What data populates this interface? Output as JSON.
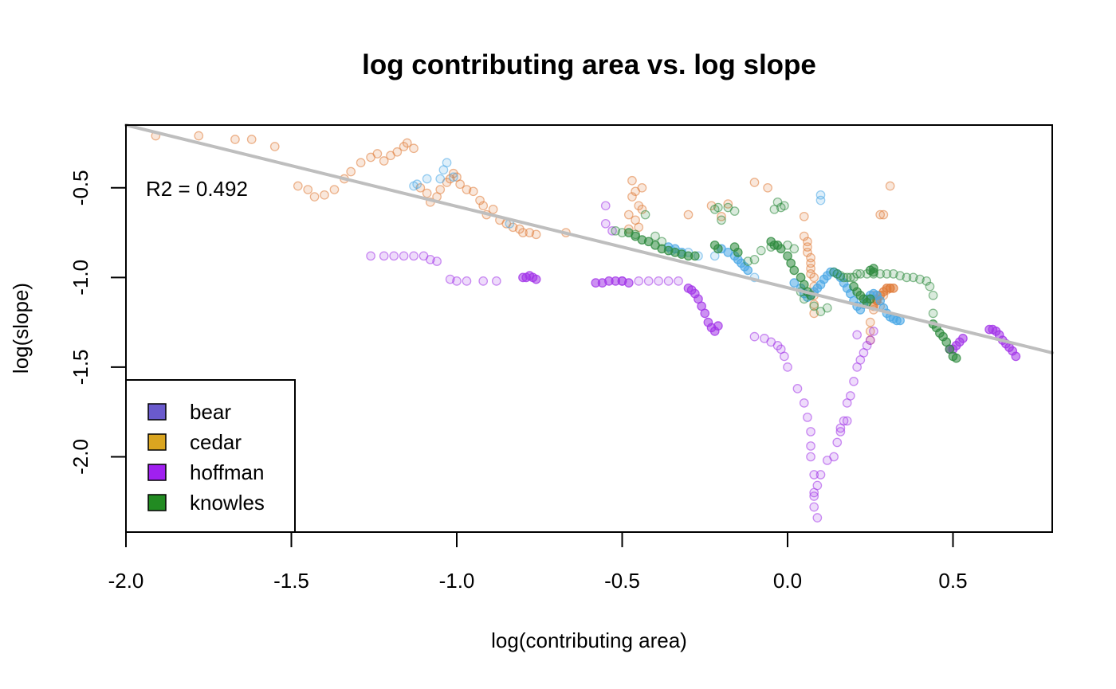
{
  "chart_data": {
    "type": "scatter",
    "title": "log contributing area vs. log slope",
    "xlabel": "log(contributing area)",
    "ylabel": "log(slope)",
    "xlim": [
      -2.0,
      0.8
    ],
    "ylim": [
      -2.42,
      -0.15
    ],
    "x_ticks": [
      "-2.0",
      "-1.5",
      "-1.0",
      "-0.5",
      "0.0",
      "0.5"
    ],
    "x_tick_values": [
      -2.0,
      -1.5,
      -1.0,
      -0.5,
      0.0,
      0.5
    ],
    "y_ticks": [
      "-0.5",
      "-1.0",
      "-1.5",
      "-2.0"
    ],
    "y_tick_values": [
      -0.5,
      -1.0,
      -1.5,
      -2.0
    ],
    "grid": false,
    "annotation": "R2 = 0.492",
    "regression_line": {
      "x": [
        -2.0,
        0.8
      ],
      "y": [
        -0.15,
        -1.42
      ],
      "color": "#bebebe"
    },
    "legend": {
      "placement": "bottom-left",
      "entries": [
        {
          "label": "bear",
          "color": "#6a5acd"
        },
        {
          "label": "cedar",
          "color": "#daa520"
        },
        {
          "label": "hoffman",
          "color": "#a020f0"
        },
        {
          "label": "knowles",
          "color": "#228b22"
        }
      ]
    },
    "series": [
      {
        "color": "#e07b39",
        "x": [
          -1.91,
          -1.78,
          -1.67,
          -1.62,
          -1.55,
          -1.48,
          -1.45,
          -1.43,
          -1.4,
          -1.37,
          -1.34,
          -1.32,
          -1.29,
          -1.26,
          -1.24,
          -1.22,
          -1.2,
          -1.18,
          -1.16,
          -1.15,
          -1.13,
          -1.11,
          -1.09,
          -1.08,
          -1.06,
          -1.05,
          -1.03,
          -1.02,
          -1.01,
          -1.0,
          -0.99,
          -0.97,
          -0.95,
          -0.93,
          -0.92,
          -0.91,
          -0.89,
          -0.87,
          -0.85,
          -0.83,
          -0.81,
          -0.8,
          -0.78,
          -0.76,
          -0.67,
          -0.48,
          -0.47,
          -0.46,
          -0.45,
          -0.44,
          -0.47,
          -0.48,
          -0.46,
          -0.45,
          -0.44,
          -0.3,
          -0.23,
          -0.2,
          -0.18,
          -0.1,
          -0.06,
          0.05,
          0.05,
          0.06,
          0.06,
          0.06,
          0.07,
          0.07,
          0.07,
          0.07,
          0.08,
          0.08,
          0.08,
          0.08,
          0.08,
          0.28,
          0.29,
          0.31,
          0.31,
          0.26,
          0.27,
          0.28,
          0.29,
          0.3,
          0.26,
          0.25,
          0.25,
          0.25
        ],
        "y": [
          -0.21,
          -0.21,
          -0.23,
          -0.23,
          -0.27,
          -0.49,
          -0.51,
          -0.55,
          -0.54,
          -0.51,
          -0.45,
          -0.41,
          -0.36,
          -0.33,
          -0.31,
          -0.35,
          -0.32,
          -0.3,
          -0.27,
          -0.25,
          -0.28,
          -0.5,
          -0.53,
          -0.58,
          -0.55,
          -0.51,
          -0.47,
          -0.45,
          -0.42,
          -0.44,
          -0.48,
          -0.51,
          -0.52,
          -0.57,
          -0.6,
          -0.65,
          -0.62,
          -0.68,
          -0.7,
          -0.72,
          -0.73,
          -0.75,
          -0.75,
          -0.76,
          -0.75,
          -0.73,
          -0.55,
          -0.52,
          -0.6,
          -0.62,
          -0.46,
          -0.65,
          -0.68,
          -0.72,
          -0.5,
          -0.65,
          -0.6,
          -0.66,
          -0.59,
          -0.47,
          -0.5,
          -0.66,
          -0.77,
          -0.8,
          -0.83,
          -0.86,
          -0.89,
          -0.92,
          -0.95,
          -0.98,
          -1.0,
          -1.05,
          -1.1,
          -1.15,
          -1.2,
          -0.65,
          -0.65,
          -0.49,
          -1.06,
          -1.1,
          -1.13,
          -1.16,
          -1.1,
          -1.07,
          -1.18,
          -1.25,
          -1.3,
          -1.35
        ],
        "dense_x": [
          0.27,
          0.28,
          0.29,
          0.3,
          0.31,
          0.32,
          0.26,
          0.27
        ],
        "dense_y": [
          -1.13,
          -1.1,
          -1.08,
          -1.06,
          -1.06,
          -1.06,
          -1.16,
          -1.12
        ]
      },
      {
        "color": "#4aa8e6",
        "x": [
          -1.13,
          -1.12,
          -1.09,
          -1.05,
          -1.04,
          -1.03,
          -1.01,
          -0.84,
          -0.35,
          -0.3,
          -0.27,
          -0.22,
          -0.1,
          0.1,
          0.1
        ],
        "y": [
          -0.49,
          -0.48,
          -0.45,
          -0.45,
          -0.4,
          -0.36,
          -0.44,
          -0.7,
          -0.85,
          -0.86,
          -0.88,
          -0.88,
          -1.0,
          -0.57,
          -0.54
        ],
        "dense_x": [
          -0.36,
          -0.34,
          -0.32,
          -0.2,
          -0.18,
          -0.16,
          -0.15,
          -0.14,
          -0.13,
          -0.12,
          0.02,
          0.04,
          0.05,
          0.06,
          0.07,
          0.08,
          0.09,
          0.1,
          0.11,
          0.12,
          0.13,
          0.14,
          0.15,
          0.16,
          0.17,
          0.18,
          0.19,
          0.2,
          0.21,
          0.22,
          0.23,
          0.24,
          0.25,
          0.26,
          0.27,
          0.28,
          0.29,
          0.3,
          0.31,
          0.32,
          0.33,
          0.34
        ],
        "dense_y": [
          -0.83,
          -0.84,
          -0.86,
          -0.84,
          -0.86,
          -0.88,
          -0.9,
          -0.92,
          -0.94,
          -0.96,
          -1.03,
          -1.06,
          -1.09,
          -1.11,
          -1.1,
          -1.08,
          -1.06,
          -1.04,
          -1.01,
          -0.99,
          -0.97,
          -0.97,
          -0.98,
          -1.0,
          -1.03,
          -1.06,
          -1.09,
          -1.13,
          -1.16,
          -1.18,
          -1.15,
          -1.12,
          -1.1,
          -1.09,
          -1.1,
          -1.13,
          -1.17,
          -1.2,
          -1.22,
          -1.23,
          -1.24,
          -1.24
        ]
      },
      {
        "color": "#a335e8",
        "x": [
          -1.26,
          -1.22,
          -1.19,
          -1.16,
          -1.13,
          -1.1,
          -1.08,
          -1.06,
          -1.02,
          -1.0,
          -0.97,
          -0.92,
          -0.88,
          -0.55,
          -0.55,
          -0.53,
          -0.5,
          -0.45,
          -0.42,
          -0.39,
          -0.36,
          -0.33,
          -0.1,
          -0.07,
          -0.05,
          -0.03,
          -0.02,
          -0.01,
          0.0,
          0.03,
          0.05,
          0.06,
          0.07,
          0.07,
          0.07,
          0.08,
          0.08,
          0.08,
          0.08,
          0.09,
          0.09,
          0.1,
          0.12,
          0.14,
          0.15,
          0.16,
          0.16,
          0.17,
          0.18,
          0.19,
          0.2,
          0.21,
          0.22,
          0.23,
          0.24,
          0.25,
          0.26,
          0.21,
          0.18
        ],
        "y": [
          -0.88,
          -0.88,
          -0.88,
          -0.88,
          -0.88,
          -0.88,
          -0.9,
          -0.91,
          -1.01,
          -1.02,
          -1.02,
          -1.02,
          -1.02,
          -0.6,
          -0.7,
          -0.74,
          -1.02,
          -1.02,
          -1.02,
          -1.02,
          -1.02,
          -1.02,
          -1.33,
          -1.34,
          -1.36,
          -1.38,
          -1.4,
          -1.44,
          -1.5,
          -1.62,
          -1.7,
          -1.78,
          -1.86,
          -1.94,
          -2.0,
          -2.1,
          -2.2,
          -2.28,
          -2.22,
          -2.34,
          -2.16,
          -2.1,
          -2.02,
          -2.0,
          -1.92,
          -1.86,
          -1.84,
          -1.8,
          -1.7,
          -1.66,
          -1.58,
          -1.5,
          -1.46,
          -1.42,
          -1.38,
          -1.35,
          -1.3,
          -1.32,
          -1.8
        ],
        "dense_x": [
          -0.8,
          -0.79,
          -0.78,
          -0.77,
          -0.76,
          -0.58,
          -0.56,
          -0.54,
          -0.52,
          -0.5,
          -0.48,
          -0.3,
          -0.29,
          -0.28,
          -0.27,
          -0.26,
          -0.25,
          -0.24,
          -0.23,
          -0.22,
          -0.21,
          0.49,
          0.5,
          0.51,
          0.52,
          0.53,
          0.61,
          0.62,
          0.63,
          0.64,
          0.65,
          0.66,
          0.67,
          0.68,
          0.69
        ],
        "dense_y": [
          -1.0,
          -1.0,
          -0.99,
          -1.0,
          -1.01,
          -1.03,
          -1.03,
          -1.02,
          -1.02,
          -1.02,
          -1.03,
          -1.06,
          -1.07,
          -1.09,
          -1.12,
          -1.16,
          -1.2,
          -1.25,
          -1.28,
          -1.3,
          -1.27,
          -1.4,
          -1.4,
          -1.38,
          -1.36,
          -1.34,
          -1.29,
          -1.29,
          -1.3,
          -1.32,
          -1.35,
          -1.37,
          -1.39,
          -1.41,
          -1.44
        ]
      },
      {
        "color": "#2e8b3e",
        "x": [
          -0.52,
          -0.5,
          -0.46,
          -0.43,
          -0.4,
          -0.38,
          -0.22,
          -0.21,
          -0.2,
          -0.18,
          -0.16,
          -0.12,
          -0.1,
          -0.08,
          -0.05,
          -0.04,
          -0.03,
          -0.02,
          -0.01,
          0.0,
          0.02,
          0.04,
          0.05,
          0.08,
          0.1,
          0.12,
          0.14,
          0.15,
          0.16,
          0.17,
          0.18,
          0.19,
          0.2,
          0.21,
          0.22,
          0.24,
          0.26,
          0.28,
          0.3,
          0.32,
          0.34,
          0.36,
          0.38,
          0.4,
          0.42,
          0.43,
          0.44,
          0.44
        ],
        "y": [
          -0.74,
          -0.75,
          -0.76,
          -0.65,
          -0.77,
          -0.8,
          -0.62,
          -0.61,
          -0.68,
          -0.61,
          -0.63,
          -0.91,
          -0.9,
          -0.85,
          -0.83,
          -0.62,
          -0.58,
          -0.61,
          -0.6,
          -0.82,
          -0.84,
          -1.08,
          -1.12,
          -1.16,
          -1.19,
          -1.17,
          -0.97,
          -0.98,
          -0.99,
          -1.0,
          -1.0,
          -1.0,
          -1.0,
          -0.98,
          -0.98,
          -0.98,
          -0.98,
          -0.98,
          -0.98,
          -0.98,
          -0.99,
          -1.0,
          -1.0,
          -1.01,
          -1.02,
          -1.05,
          -1.1,
          -1.2
        ],
        "dense_x": [
          -0.48,
          -0.46,
          -0.44,
          -0.42,
          -0.4,
          -0.38,
          -0.36,
          -0.34,
          -0.32,
          -0.3,
          -0.28,
          -0.22,
          -0.21,
          -0.16,
          -0.15,
          -0.05,
          -0.04,
          -0.03,
          -0.02,
          0.0,
          0.01,
          0.02,
          0.04,
          0.05,
          0.06,
          0.07,
          0.2,
          0.21,
          0.22,
          0.23,
          0.24,
          0.25,
          0.25,
          0.26,
          0.26,
          0.44,
          0.45,
          0.46,
          0.47,
          0.48,
          0.49,
          0.5,
          0.51
        ],
        "dense_y": [
          -0.75,
          -0.77,
          -0.79,
          -0.8,
          -0.82,
          -0.84,
          -0.85,
          -0.86,
          -0.87,
          -0.88,
          -0.88,
          -0.82,
          -0.84,
          -0.83,
          -0.86,
          -0.8,
          -0.82,
          -0.82,
          -0.84,
          -0.88,
          -0.92,
          -0.96,
          -1.0,
          -1.04,
          -1.08,
          -1.1,
          -1.05,
          -1.08,
          -1.1,
          -1.12,
          -1.14,
          -1.12,
          -0.96,
          -0.95,
          -0.97,
          -1.26,
          -1.28,
          -1.31,
          -1.33,
          -1.36,
          -1.4,
          -1.44,
          -1.45
        ]
      }
    ]
  }
}
